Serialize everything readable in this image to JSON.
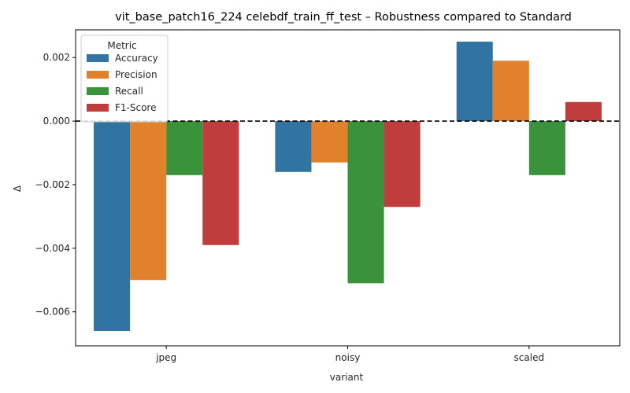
{
  "chart_data": {
    "type": "bar",
    "title": "vit_base_patch16_224 celebdf_train_ff_test – Robustness compared to Standard",
    "xlabel": "variant",
    "ylabel": "Δ",
    "categories": [
      "jpeg",
      "noisy",
      "scaled"
    ],
    "series": [
      {
        "name": "Accuracy",
        "color": "#3274a1",
        "values": [
          -0.0066,
          -0.0016,
          0.0025
        ]
      },
      {
        "name": "Precision",
        "color": "#e1812c",
        "values": [
          -0.005,
          -0.0013,
          0.0019
        ]
      },
      {
        "name": "Recall",
        "color": "#3a923a",
        "values": [
          -0.0017,
          -0.0051,
          -0.0017
        ]
      },
      {
        "name": "F1-Score",
        "color": "#c03d3e",
        "values": [
          -0.0039,
          -0.0027,
          0.0006
        ]
      }
    ],
    "ylim": [
      -0.00707,
      0.00287
    ],
    "yticks": [
      -0.006,
      -0.004,
      -0.002,
      0.0,
      0.002
    ],
    "ytick_labels": [
      "−0.006",
      "−0.004",
      "−0.002",
      "0.000",
      "0.002"
    ],
    "reference_line": 0,
    "legend": {
      "title": "Metric",
      "position": "top-left"
    },
    "grid": false
  }
}
